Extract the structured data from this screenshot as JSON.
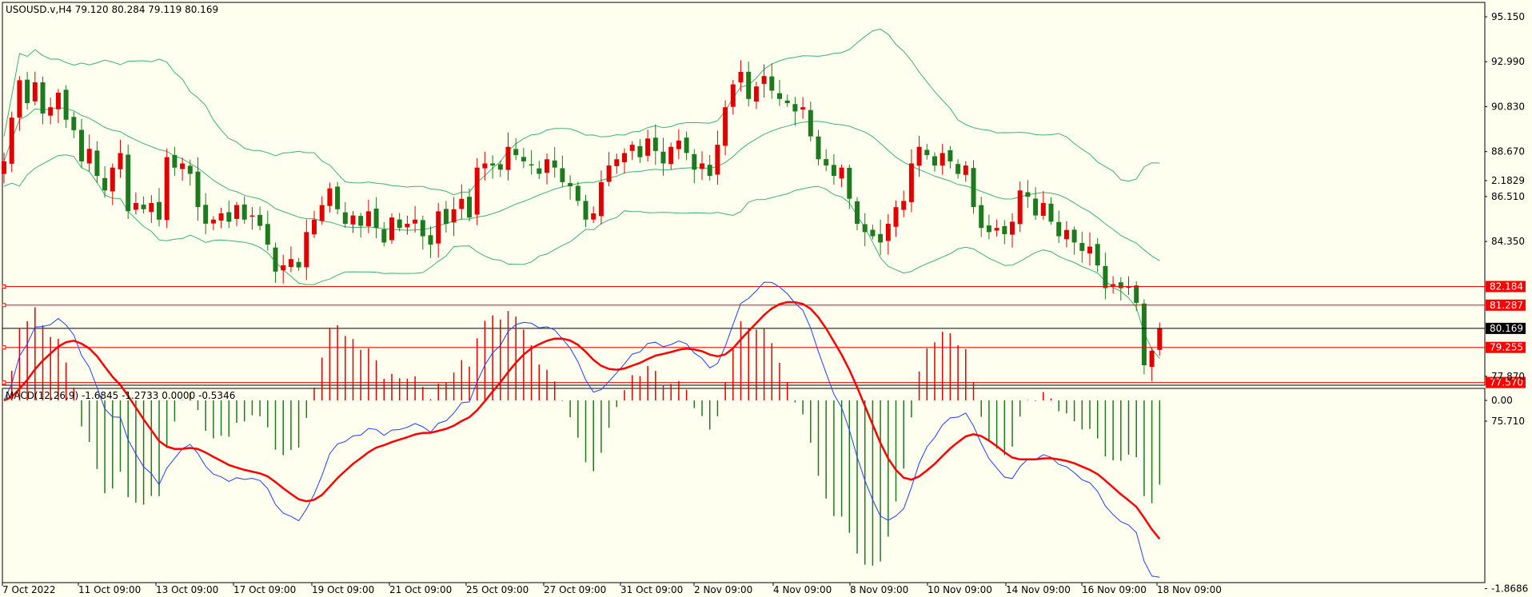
{
  "main": {
    "header": "USOUSD.v,H4  79.120 80.284 79.119 80.169",
    "price_ticks": [
      "95.150",
      "92.990",
      "90.830",
      "88.670",
      "86.510",
      "84.350",
      "77.870",
      "75.710"
    ],
    "price_tick_values": [
      95.15,
      92.99,
      90.83,
      88.67,
      86.51,
      84.35,
      77.87,
      75.71
    ],
    "current_price": "80.169",
    "current_price_value": 80.169,
    "hlines": [
      {
        "label": "82.184",
        "value": 82.184
      },
      {
        "label": "81.287",
        "value": 81.287
      },
      {
        "label": "79.255",
        "value": 79.255
      },
      {
        "label": "77.570",
        "value": 77.57
      }
    ]
  },
  "macd": {
    "header": "MACD(12,26,9) -1.6845 -1.2733 0.0000 -0.5346",
    "ticks": [
      "2.1829",
      "0.00",
      "-1.8686"
    ],
    "tick_values": [
      2.1829,
      0,
      -1.8686
    ]
  },
  "time_labels": [
    "7 Oct 2022",
    "11 Oct 09:00",
    "13 Oct 09:00",
    "17 Oct 09:00",
    "19 Oct 09:00",
    "21 Oct 09:00",
    "25 Oct 09:00",
    "27 Oct 09:00",
    "31 Oct 09:00",
    "2 Nov 09:00",
    "4 Nov 09:00",
    "8 Nov 09:00",
    "10 Nov 09:00",
    "14 Nov 09:00",
    "16 Nov 09:00",
    "18 Nov 09:00"
  ],
  "chart_data": {
    "type": "candlestick",
    "symbol": "USOUSD.v",
    "timeframe": "H4",
    "closes": [
      88.2,
      90.3,
      92.1,
      91.0,
      92.0,
      90.5,
      90.8,
      91.5,
      90.2,
      89.7,
      88.2,
      88.8,
      87.5,
      86.8,
      87.9,
      88.6,
      85.8,
      86.2,
      85.9,
      86.2,
      85.4,
      88.4,
      87.9,
      88.1,
      87.6,
      86.0,
      85.2,
      85.4,
      85.7,
      85.3,
      86.1,
      85.4,
      85.6,
      85.1,
      84.2,
      82.9,
      83.2,
      83.5,
      83.1,
      84.8,
      85.4,
      86.1,
      86.9,
      85.9,
      85.2,
      85.6,
      85.1,
      85.8,
      85.0,
      84.3,
      85.5,
      85.0,
      85.2,
      85.4,
      84.6,
      84.2,
      85.8,
      85.2,
      85.9,
      86.4,
      85.5,
      87.9,
      88.1,
      88.0,
      87.8,
      88.9,
      88.5,
      88.2,
      88.0,
      87.6,
      88.3,
      87.9,
      87.2,
      87.0,
      86.3,
      85.4,
      85.7,
      87.2,
      88.0,
      88.3,
      88.6,
      89.0,
      88.4,
      89.3,
      88.7,
      88.1,
      88.9,
      89.2,
      88.6,
      87.8,
      88.1,
      87.5,
      89.0,
      90.8,
      91.9,
      92.5,
      91.2,
      91.8,
      92.3,
      91.6,
      91.2,
      91.0,
      90.6,
      90.8,
      89.4,
      88.3,
      88.0,
      87.5,
      87.9,
      86.4,
      85.2,
      84.8,
      84.6,
      84.3,
      85.2,
      86.0,
      86.3,
      88.1,
      88.9,
      88.5,
      88.0,
      88.6,
      88.2,
      87.6,
      88.0,
      86.0,
      85.0,
      84.8,
      85.0,
      84.7,
      85.3,
      86.8,
      86.5,
      85.6,
      86.2,
      85.3,
      84.6,
      84.9,
      84.3,
      83.9,
      84.1,
      83.2,
      82.1,
      82.3,
      82.1,
      82.2,
      81.4,
      78.4,
      79.1,
      80.169
    ],
    "bollinger_period": 20,
    "horizontal_levels": [
      82.184,
      81.287,
      79.255,
      77.57
    ],
    "macd_params": [
      12,
      26,
      9
    ],
    "macd_values": {
      "main": -1.6845,
      "signal": -1.2733,
      "zero": 0.0,
      "osma": -0.5346
    }
  }
}
